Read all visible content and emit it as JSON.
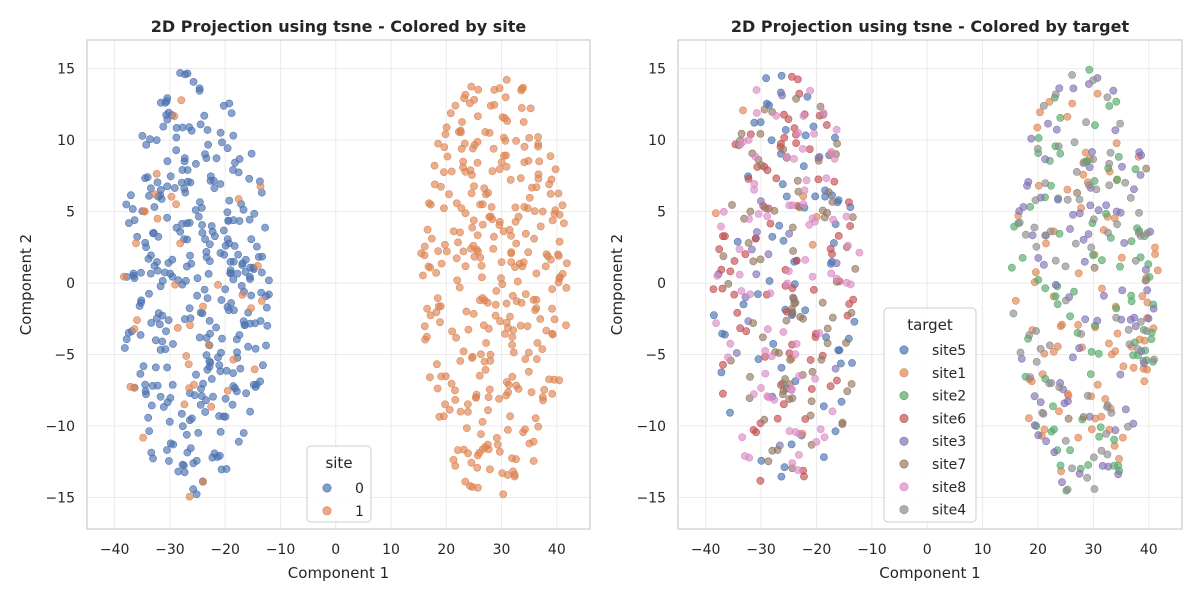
{
  "chart_data": [
    {
      "type": "scatter",
      "title": "2D Projection using tsne - Colored by site",
      "xlabel": "Component 1",
      "ylabel": "Component 2",
      "xlim": [
        -45,
        46
      ],
      "ylim": [
        -17.2,
        17.0
      ],
      "xticks": [
        -40,
        -30,
        -20,
        -10,
        0,
        10,
        20,
        30,
        40
      ],
      "yticks": [
        -15,
        -10,
        -5,
        0,
        5,
        10,
        15
      ],
      "grid": true,
      "legend": {
        "title": "site",
        "placement": "lower-center"
      },
      "series": [
        {
          "name": "0",
          "color": "#4C72B0",
          "clusters": [
            {
              "cx": -25.5,
              "cy": 0,
              "rx": 13.5,
              "ry": 15,
              "n": 330
            }
          ]
        },
        {
          "name": "1",
          "color": "#DD8452",
          "clusters": [
            {
              "cx": 28.5,
              "cy": 0,
              "rx": 13.5,
              "ry": 15,
              "n": 330
            },
            {
              "cx": -25.5,
              "cy": 0,
              "rx": 13.5,
              "ry": 15,
              "n": 40
            }
          ]
        }
      ]
    },
    {
      "type": "scatter",
      "title": "2D Projection using tsne - Colored by target",
      "xlabel": "Component 1",
      "ylabel": "Component 2",
      "xlim": [
        -45,
        46
      ],
      "ylim": [
        -17.2,
        17.0
      ],
      "xticks": [
        -40,
        -30,
        -20,
        -10,
        0,
        10,
        20,
        30,
        40
      ],
      "yticks": [
        -15,
        -10,
        -5,
        0,
        5,
        10,
        15
      ],
      "grid": true,
      "legend": {
        "title": "target",
        "placement": "lower-center"
      },
      "series": [
        {
          "name": "site5",
          "color": "#4C72B0",
          "clusters": [
            {
              "cx": -25.5,
              "cy": 0,
              "rx": 13.5,
              "ry": 15,
              "n": 75
            }
          ]
        },
        {
          "name": "site1",
          "color": "#DD8452",
          "clusters": [
            {
              "cx": 28.5,
              "cy": 0,
              "rx": 13.5,
              "ry": 15,
              "n": 85
            },
            {
              "cx": -25.5,
              "cy": 0,
              "rx": 13.5,
              "ry": 15,
              "n": 8
            }
          ]
        },
        {
          "name": "site2",
          "color": "#55A868",
          "clusters": [
            {
              "cx": 28.5,
              "cy": 0,
              "rx": 13.5,
              "ry": 15,
              "n": 85
            }
          ]
        },
        {
          "name": "site6",
          "color": "#C44E52",
          "clusters": [
            {
              "cx": -25.5,
              "cy": 0,
              "rx": 13.5,
              "ry": 15,
              "n": 80
            }
          ]
        },
        {
          "name": "site3",
          "color": "#8172B3",
          "clusters": [
            {
              "cx": 28.5,
              "cy": 0,
              "rx": 13.5,
              "ry": 15,
              "n": 80
            },
            {
              "cx": -25.5,
              "cy": 0,
              "rx": 13.5,
              "ry": 15,
              "n": 15
            }
          ]
        },
        {
          "name": "site7",
          "color": "#937860",
          "clusters": [
            {
              "cx": -25.5,
              "cy": 0,
              "rx": 13.5,
              "ry": 15,
              "n": 85
            },
            {
              "cx": 28.5,
              "cy": 0,
              "rx": 13.5,
              "ry": 15,
              "n": 5
            }
          ]
        },
        {
          "name": "site8",
          "color": "#DA8BC3",
          "clusters": [
            {
              "cx": -25.5,
              "cy": 0,
              "rx": 13.5,
              "ry": 15,
              "n": 85
            }
          ]
        },
        {
          "name": "site4",
          "color": "#8C8C8C",
          "clusters": [
            {
              "cx": 28.5,
              "cy": 0,
              "rx": 13.5,
              "ry": 15,
              "n": 80
            }
          ]
        }
      ]
    }
  ]
}
